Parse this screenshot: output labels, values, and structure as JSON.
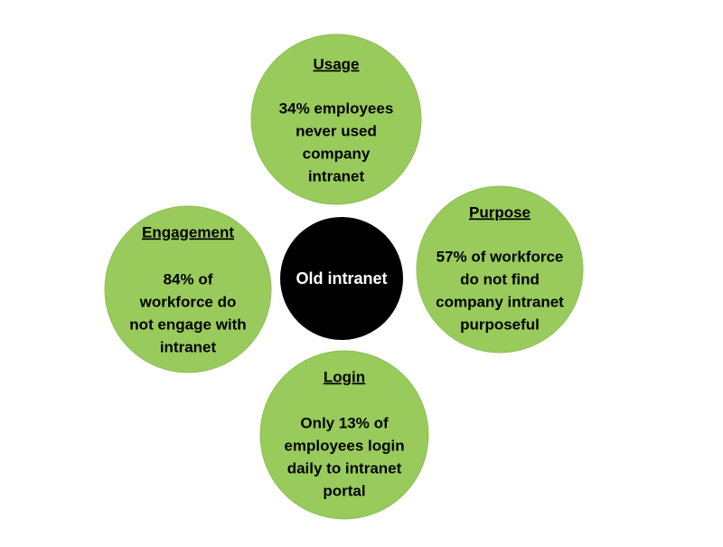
{
  "center": {
    "label": "Old intranet"
  },
  "nodes": [
    {
      "title": "Usage",
      "lines": [
        "34% employees",
        "never used",
        "company",
        "intranet"
      ]
    },
    {
      "title": "Purpose",
      "lines": [
        "57% of workforce",
        "do not find",
        "company intranet",
        "purposeful"
      ]
    },
    {
      "title": "Engagement",
      "lines": [
        "84% of",
        "workforce do",
        "not engage with",
        "intranet"
      ]
    },
    {
      "title": "Login",
      "lines": [
        "Only 13% of",
        "employees login",
        "daily to intranet",
        "portal"
      ]
    }
  ]
}
